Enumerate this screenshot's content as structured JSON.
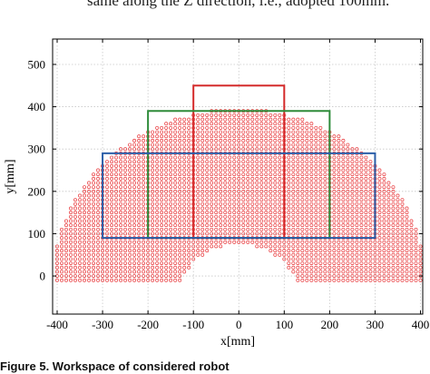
{
  "page": {
    "header_text": "same along the Z direction, i.e., adopted 100mm.",
    "caption": "Figure 5. Workspace of considered robot"
  },
  "chart_data": {
    "type": "scatter",
    "title": "",
    "xlabel": "x[mm]",
    "ylabel": "y[mm]",
    "xlim": [
      -410,
      405
    ],
    "ylim": [
      -90,
      560
    ],
    "xticks": [
      -400,
      -300,
      -200,
      -100,
      0,
      100,
      200,
      300,
      400
    ],
    "yticks": [
      0,
      100,
      200,
      300,
      400,
      500
    ],
    "grid": true,
    "point_style": {
      "marker": "open-circle",
      "color": "#e8383b"
    },
    "workspace_points": {
      "description_of_region": "points on a 10 mm grid inside outer radius 410 mm around (0,-15), excluding a lower cut-out of radius 135 mm around (0,-60), for y >= -10",
      "grid_step": 10,
      "outer_circle": {
        "cx": 0,
        "cy": -15,
        "r": 410
      },
      "inner_circle": {
        "cx": 0,
        "cy": -60,
        "r": 135
      },
      "y_min": -10
    },
    "rectangles": [
      {
        "color": "#d42a2a",
        "x0": -100,
        "x1": 100,
        "y0": 90,
        "y1": 450
      },
      {
        "color": "#2e8b3a",
        "x0": -200,
        "x1": 200,
        "y0": 90,
        "y1": 390
      },
      {
        "color": "#2b5ea8",
        "x0": -300,
        "x1": 300,
        "y0": 90,
        "y1": 290
      }
    ]
  }
}
